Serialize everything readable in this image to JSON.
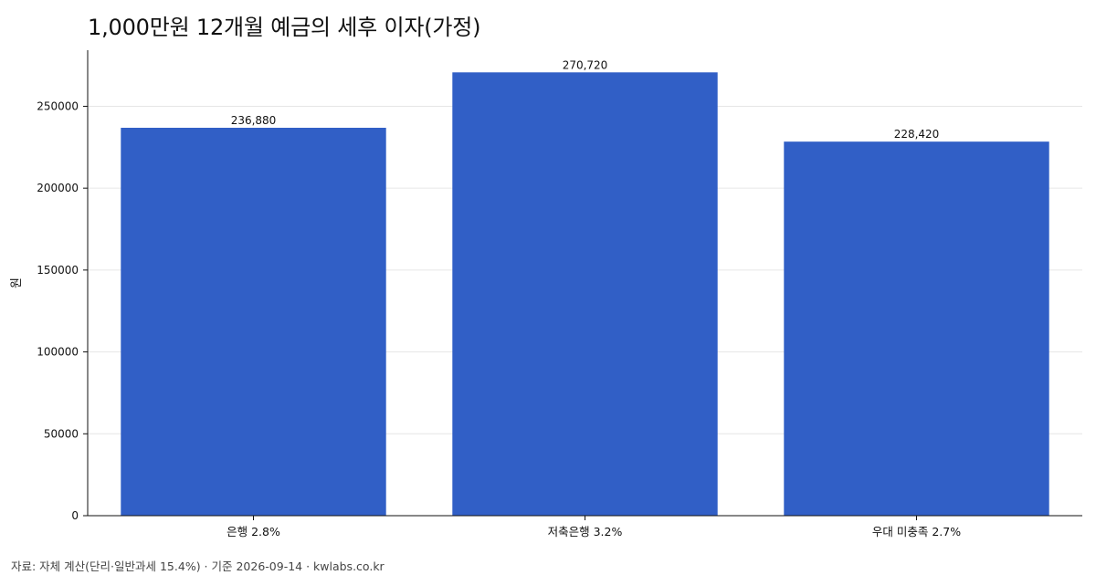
{
  "chart_data": {
    "type": "bar",
    "title": "1,000만원 12개월 예금의 세후 이자(가정)",
    "xlabel": "",
    "ylabel": "원",
    "categories": [
      "은행 2.8%",
      "저축은행 3.2%",
      "우대 미충족 2.7%"
    ],
    "values": [
      236880,
      270720,
      228420
    ],
    "value_labels": [
      "236,880",
      "270,720",
      "228,420"
    ],
    "ylim": [
      0,
      284256
    ],
    "yticks": [
      0,
      50000,
      100000,
      150000,
      200000,
      250000
    ],
    "ytick_labels": [
      "0",
      "50000",
      "100000",
      "150000",
      "200000",
      "250000"
    ],
    "grid": "horizontal",
    "bar_color": "#315fc6"
  },
  "footer": {
    "source": "자료: 자체 계산(단리·일반과세 15.4%) · 기준 2026-09-14 · kwlabs.co.kr"
  }
}
